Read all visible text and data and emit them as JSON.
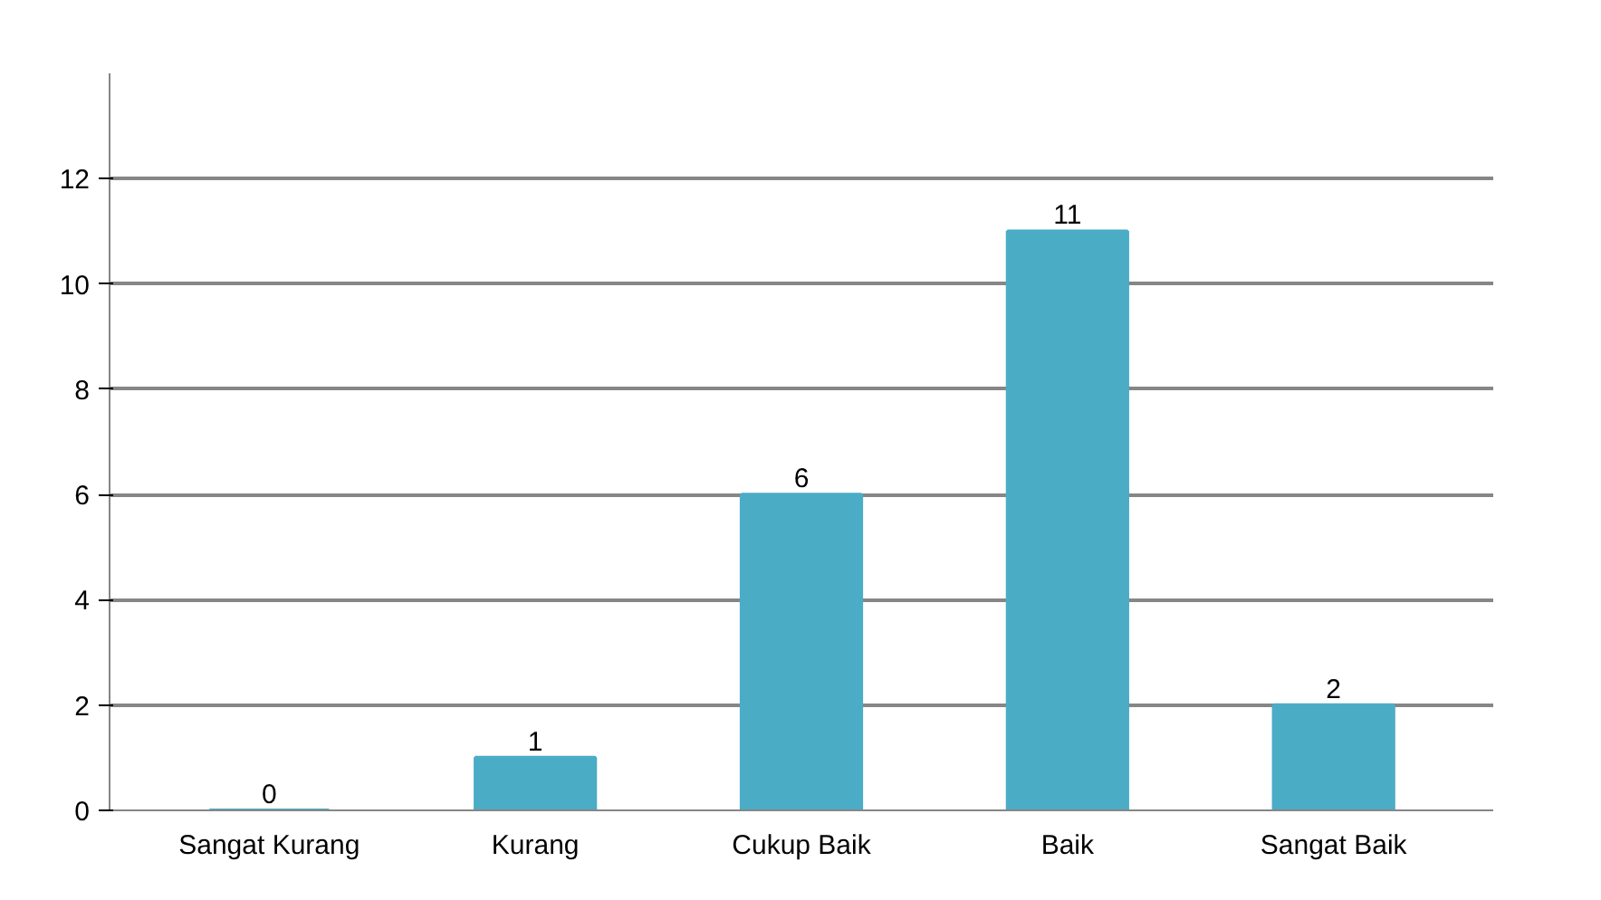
{
  "chart_data": {
    "type": "bar",
    "categories": [
      "Sangat Kurang",
      "Kurang",
      "Cukup Baik",
      "Baik",
      "Sangat Baik"
    ],
    "values": [
      0,
      1,
      6,
      11,
      2
    ],
    "color": "#4bacc6",
    "ylim": [
      0,
      14
    ],
    "yticks": [
      0,
      2,
      4,
      6,
      8,
      10,
      12
    ],
    "grid": "y",
    "data_labels": true
  }
}
